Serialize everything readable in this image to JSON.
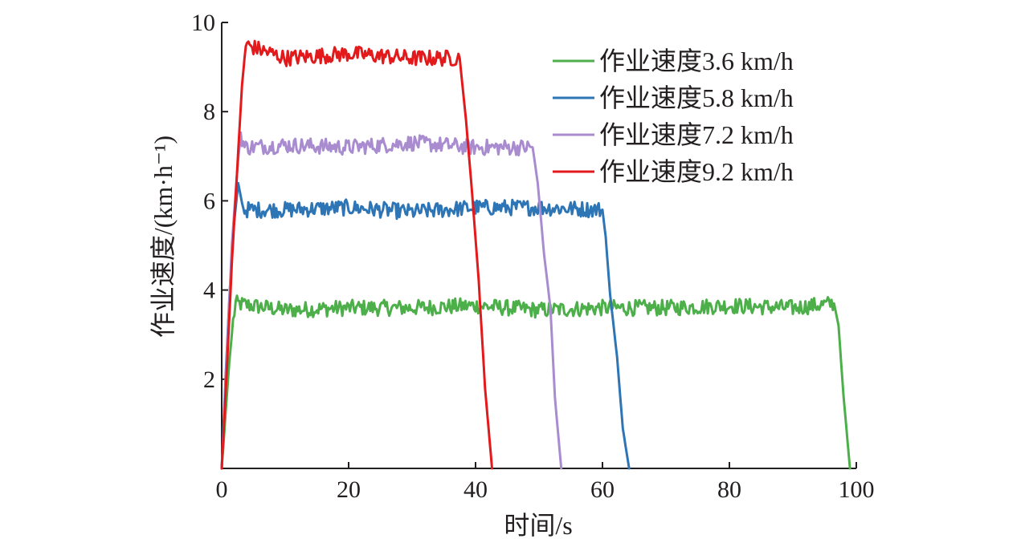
{
  "chart_data": {
    "type": "line",
    "title": "",
    "xlabel": "时间/s",
    "ylabel": "作业速度/(km·h⁻¹)",
    "xlim": [
      0,
      100
    ],
    "ylim": [
      0,
      10
    ],
    "xticks": [
      0,
      20,
      40,
      60,
      80,
      100
    ],
    "yticks": [
      2,
      4,
      6,
      8,
      10
    ],
    "x_tick_labels": [
      "0",
      "20",
      "40",
      "60",
      "80",
      "100"
    ],
    "y_tick_labels": [
      "2",
      "4",
      "6",
      "8",
      "10"
    ],
    "grid": false,
    "legend_position": "top-right",
    "series": [
      {
        "name": "作业速度3.6 km/h",
        "color": "#4daf4a",
        "plateau": 3.6,
        "points": [
          [
            0,
            0
          ],
          [
            0.6,
            1.2
          ],
          [
            1.2,
            2.4
          ],
          [
            1.8,
            3.3
          ],
          [
            2.2,
            3.7
          ],
          [
            10,
            3.55
          ],
          [
            20,
            3.6
          ],
          [
            30,
            3.6
          ],
          [
            40,
            3.65
          ],
          [
            50,
            3.55
          ],
          [
            60,
            3.6
          ],
          [
            70,
            3.6
          ],
          [
            80,
            3.65
          ],
          [
            90,
            3.6
          ],
          [
            96.5,
            3.7
          ],
          [
            97.2,
            3.2
          ],
          [
            98,
            1.6
          ],
          [
            99,
            0
          ]
        ]
      },
      {
        "name": "作业速度5.8 km/h",
        "color": "#2e75b6",
        "plateau": 5.8,
        "points": [
          [
            0,
            0
          ],
          [
            0.6,
            2.0
          ],
          [
            1.2,
            3.8
          ],
          [
            1.8,
            5.3
          ],
          [
            2.6,
            6.4
          ],
          [
            3.4,
            5.8
          ],
          [
            10,
            5.8
          ],
          [
            20,
            5.85
          ],
          [
            30,
            5.75
          ],
          [
            40,
            5.85
          ],
          [
            50,
            5.85
          ],
          [
            60,
            5.8
          ],
          [
            60.5,
            5.2
          ],
          [
            61.2,
            3.9
          ],
          [
            62.3,
            2.5
          ],
          [
            63.2,
            0.9
          ],
          [
            64.2,
            0
          ]
        ]
      },
      {
        "name": "作业速度7.2 km/h",
        "color": "#a98ccf",
        "plateau": 7.2,
        "points": [
          [
            0,
            0
          ],
          [
            0.8,
            2.5
          ],
          [
            1.6,
            5.0
          ],
          [
            2.5,
            6.8
          ],
          [
            3.0,
            7.5
          ],
          [
            3.6,
            7.2
          ],
          [
            10,
            7.25
          ],
          [
            20,
            7.2
          ],
          [
            30,
            7.3
          ],
          [
            40,
            7.2
          ],
          [
            49,
            7.2
          ],
          [
            49.8,
            6.4
          ],
          [
            50.8,
            4.8
          ],
          [
            51.8,
            3.6
          ],
          [
            52.5,
            1.6
          ],
          [
            53.5,
            0
          ]
        ]
      },
      {
        "name": "作业速度9.2 km/h",
        "color": "#e31a1c",
        "plateau": 9.2,
        "points": [
          [
            0,
            0
          ],
          [
            0.8,
            2.2
          ],
          [
            1.6,
            4.6
          ],
          [
            2.4,
            6.6
          ],
          [
            3.2,
            8.6
          ],
          [
            3.8,
            9.5
          ],
          [
            10,
            9.2
          ],
          [
            20,
            9.3
          ],
          [
            30,
            9.2
          ],
          [
            37.5,
            9.2
          ],
          [
            38.5,
            7.8
          ],
          [
            39.5,
            6.1
          ],
          [
            40.5,
            4.2
          ],
          [
            41.5,
            1.8
          ],
          [
            42.6,
            0
          ]
        ]
      }
    ]
  }
}
